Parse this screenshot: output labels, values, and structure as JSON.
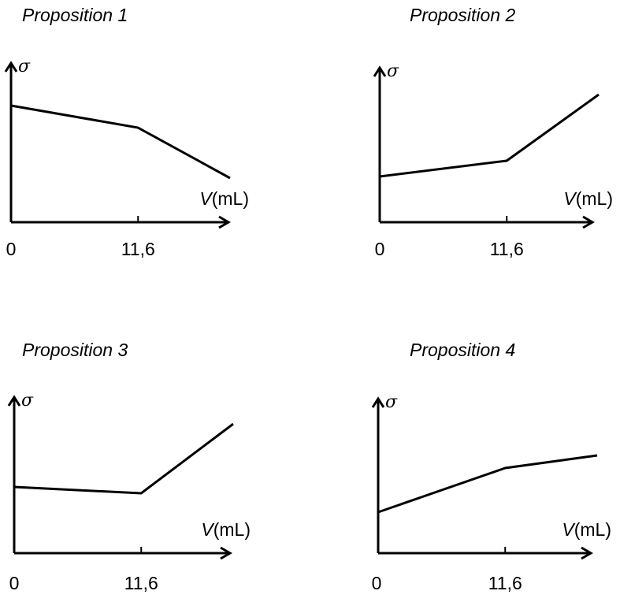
{
  "chart_data": [
    {
      "type": "line",
      "title": "Proposition 1",
      "ylabel": "σ",
      "xlabel_symbol": "V",
      "xlabel_unit": "(mL)",
      "x_ticks": [
        "0",
        "11,6"
      ],
      "x": [
        0,
        11.6,
        20
      ],
      "values": [
        0.74,
        0.6,
        0.28
      ]
    },
    {
      "type": "line",
      "title": "Proposition 2",
      "ylabel": "σ",
      "xlabel_symbol": "V",
      "xlabel_unit": "(mL)",
      "x_ticks": [
        "0",
        "11,6"
      ],
      "x": [
        0,
        11.6,
        20
      ],
      "values": [
        0.29,
        0.39,
        0.81
      ]
    },
    {
      "type": "line",
      "title": "Proposition 3",
      "ylabel": "σ",
      "xlabel_symbol": "V",
      "xlabel_unit": "(mL)",
      "x_ticks": [
        "0",
        "11,6"
      ],
      "x": [
        0,
        11.6,
        20
      ],
      "values": [
        0.42,
        0.38,
        0.82
      ]
    },
    {
      "type": "line",
      "title": "Proposition 4",
      "ylabel": "σ",
      "xlabel_symbol": "V",
      "xlabel_unit": "(mL)",
      "x_ticks": [
        "0",
        "11,6"
      ],
      "x": [
        0,
        11.6,
        20
      ],
      "values": [
        0.26,
        0.54,
        0.62
      ]
    }
  ]
}
